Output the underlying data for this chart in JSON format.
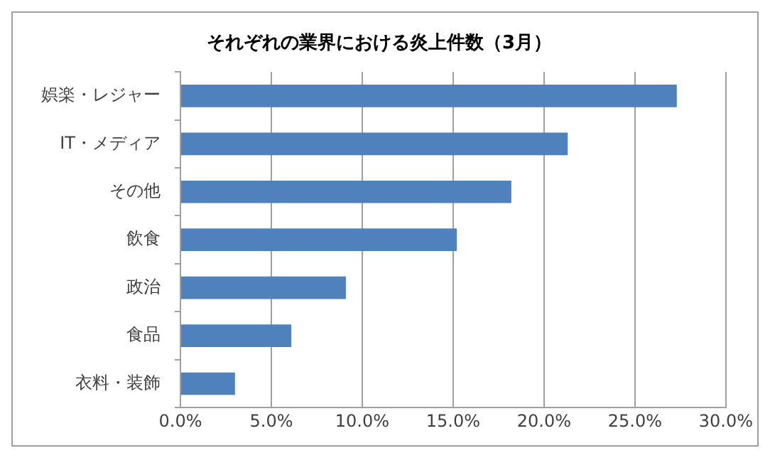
{
  "chart_data": {
    "type": "bar",
    "orientation": "horizontal",
    "title": "それぞれの業界における炎上件数（3月）",
    "categories": [
      "娯楽・レジャー",
      "IT・メディア",
      "その他",
      "飲食",
      "政治",
      "食品",
      "衣料・装飾"
    ],
    "values": [
      27.3,
      21.3,
      18.2,
      15.2,
      9.1,
      6.1,
      3.0
    ],
    "color": "#4f81bd",
    "xlim": [
      0,
      30
    ],
    "xticks": [
      {
        "value": 0,
        "label": "0.0%"
      },
      {
        "value": 5,
        "label": "5.0%"
      },
      {
        "value": 10,
        "label": "10.0%"
      },
      {
        "value": 15,
        "label": "15.0%"
      },
      {
        "value": 20,
        "label": "20.0%"
      },
      {
        "value": 25,
        "label": "25.0%"
      },
      {
        "value": 30,
        "label": "30.0%"
      }
    ],
    "grid": "x",
    "legend": false
  }
}
